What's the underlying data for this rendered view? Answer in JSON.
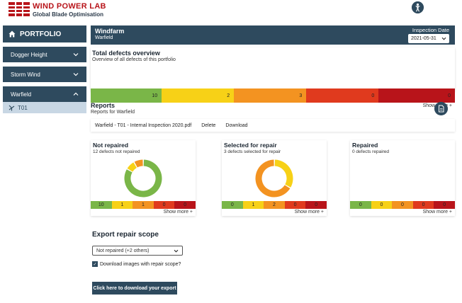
{
  "brand": {
    "name": "WIND POWER LAB",
    "subtitle": "Global Blade Optimisation"
  },
  "sidebar": {
    "portfolio_label": "PORTFOLIO",
    "items": [
      {
        "label": "Dogger Height",
        "expanded": false
      },
      {
        "label": "Storm Wind",
        "expanded": false
      },
      {
        "label": "Warfield",
        "expanded": true
      }
    ],
    "sub_item": "T01"
  },
  "header": {
    "windfarm_label": "Windfarm",
    "windfarm_name": "Warfield",
    "inspection_label": "Inspection Date",
    "inspection_date": "2021-05-31"
  },
  "overview": {
    "title": "Total defects overview",
    "subtitle": "Overview of all defects of this portfolio",
    "segments": [
      {
        "value": "10",
        "color": "#7ab648",
        "weight": 100
      },
      {
        "value": "2",
        "color": "#f7d117",
        "weight": 102
      },
      {
        "value": "3",
        "color": "#f39321",
        "weight": 102
      },
      {
        "value": "0",
        "color": "#e03a1e",
        "weight": 102
      },
      {
        "value": "0",
        "color": "#b8141a",
        "weight": 108
      }
    ],
    "show_more": "Show more +"
  },
  "reports": {
    "title": "Reports",
    "subtitle": "Reports for Warfield",
    "file_name": "Warfield - T01 - Internal Inspection 2020.pdf",
    "delete_label": "Delete",
    "download_label": "Download"
  },
  "cards": [
    {
      "title": "Not repaired",
      "subtitle": "12 defects not repaired",
      "donut": [
        {
          "value": 10,
          "color": "#7ab648"
        },
        {
          "value": 1,
          "color": "#f7d117"
        },
        {
          "value": 1,
          "color": "#f39321"
        }
      ],
      "values": [
        "10",
        "1",
        "1",
        "0",
        "0"
      ],
      "show_more": "Show more +"
    },
    {
      "title": "Selected for repair",
      "subtitle": "3 defects selected for repair",
      "donut": [
        {
          "value": 1,
          "color": "#f7d117"
        },
        {
          "value": 2,
          "color": "#f39321"
        }
      ],
      "values": [
        "0",
        "1",
        "2",
        "0",
        "0"
      ],
      "show_more": "Show more +"
    },
    {
      "title": "Repaired",
      "subtitle": "0 defects repaired",
      "donut": [],
      "values": [
        "0",
        "0",
        "0",
        "0",
        "0"
      ],
      "show_more": "Show more +"
    }
  ],
  "severity_colors": [
    "#7ab648",
    "#f7d117",
    "#f39321",
    "#e03a1e",
    "#b8141a"
  ],
  "export": {
    "title": "Export repair scope",
    "scope_value": "Not repaired (+2 others)",
    "checkbox_label": "Download images with repair scope?",
    "checkbox_checked": true,
    "button_label": "Click here to download your export"
  }
}
